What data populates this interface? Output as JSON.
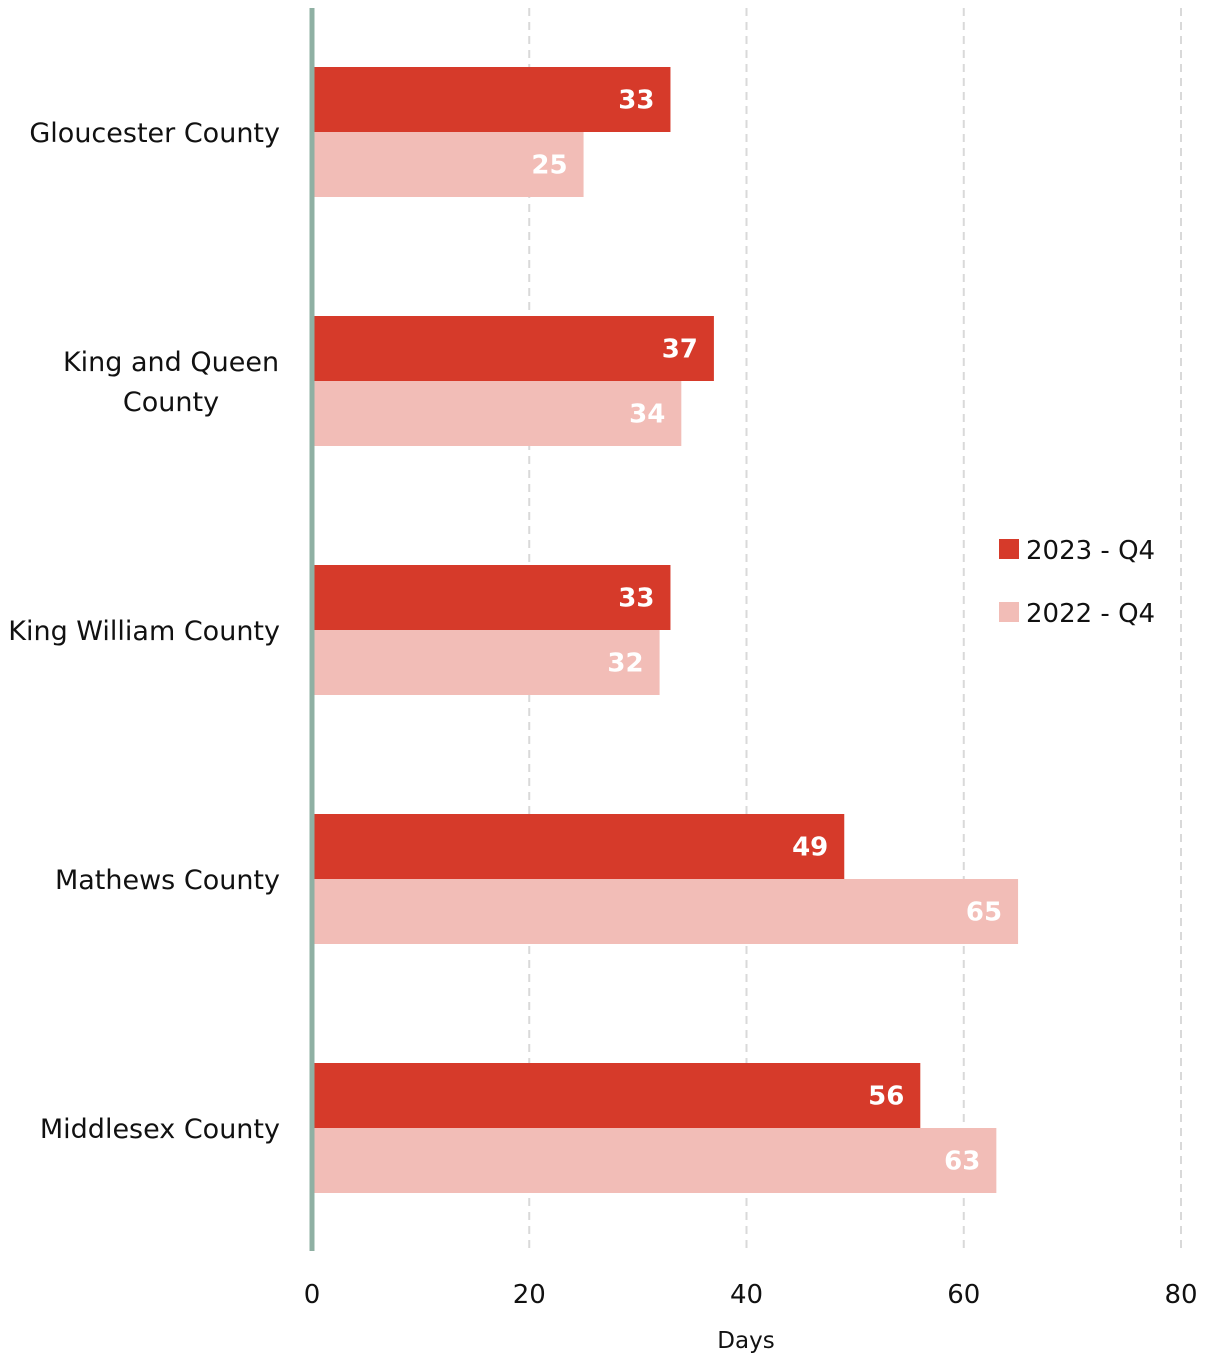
{
  "chart_data": {
    "type": "bar",
    "orientation": "horizontal",
    "categories": [
      [
        "Gloucester County"
      ],
      [
        "King and Queen",
        "County"
      ],
      [
        "King William County"
      ],
      [
        "Mathews County"
      ],
      [
        "Middlesex County"
      ]
    ],
    "series": [
      {
        "name": "2023 - Q4",
        "color": "#d63a2a",
        "values": [
          33,
          37,
          33,
          49,
          56
        ]
      },
      {
        "name": "2022 - Q4",
        "color": "#f2bdb7",
        "values": [
          25,
          34,
          32,
          65,
          63
        ]
      }
    ],
    "value_precision": 0.5,
    "xlabel": "Days",
    "ylabel": "",
    "xlim": [
      0,
      80
    ],
    "xticks": [
      0,
      20,
      40,
      60,
      80
    ],
    "grid": "vertical dashed",
    "legend_position": "right",
    "axis_color": "#8fb0a3",
    "grid_color": "#d9d9d9"
  }
}
